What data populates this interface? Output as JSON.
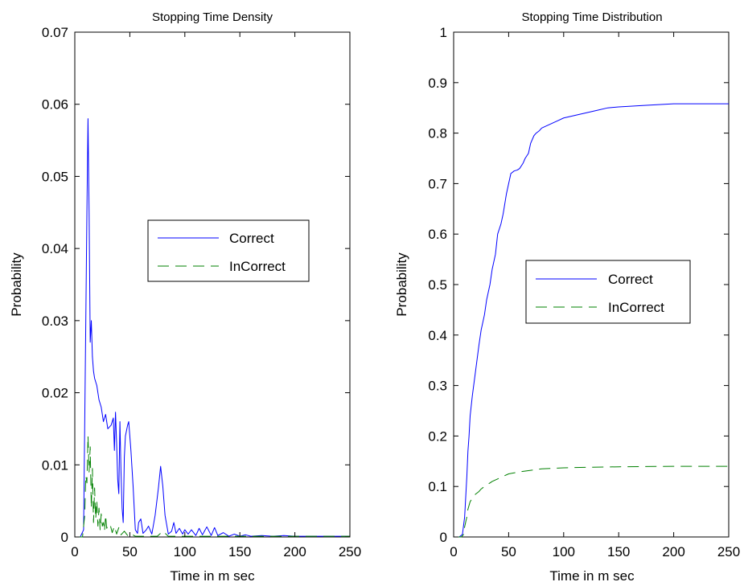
{
  "chart_data": [
    {
      "type": "line",
      "title": "Stopping Time Density",
      "xlabel": "Time in m sec",
      "ylabel": "Probability",
      "xlim": [
        0,
        250
      ],
      "ylim": [
        0,
        0.07
      ],
      "xticks": [
        0,
        50,
        100,
        150,
        200,
        250
      ],
      "xtick_labels": [
        "0",
        "50",
        "100",
        "150",
        "200",
        "250"
      ],
      "yticks": [
        0,
        0.01,
        0.02,
        0.03,
        0.04,
        0.05,
        0.06,
        0.07
      ],
      "ytick_labels": [
        "0",
        "0.01",
        "0.02",
        "0.03",
        "0.04",
        "0.05",
        "0.06",
        "0.07"
      ],
      "grid": false,
      "legend_position": "center-right",
      "series": [
        {
          "name": "Correct",
          "color": "#0000ff",
          "style": "solid",
          "x": [
            0,
            5,
            8,
            10,
            11,
            12,
            13,
            14,
            15,
            16,
            17,
            18,
            20,
            22,
            24,
            26,
            28,
            30,
            33,
            35,
            36,
            37,
            38,
            39,
            40,
            41,
            42,
            43,
            44,
            45,
            46,
            48,
            49,
            50,
            51,
            53,
            55,
            57,
            58,
            60,
            62,
            65,
            67,
            70,
            73,
            76,
            78,
            80,
            82,
            85,
            88,
            90,
            92,
            95,
            98,
            100,
            103,
            106,
            110,
            113,
            116,
            120,
            124,
            127,
            130,
            135,
            140,
            145,
            150,
            155,
            160,
            170,
            180,
            190,
            200,
            210,
            220,
            230,
            240,
            250
          ],
          "values": [
            0,
            0,
            0.001,
            0.03,
            0.045,
            0.058,
            0.045,
            0.027,
            0.03,
            0.025,
            0.023,
            0.022,
            0.021,
            0.019,
            0.018,
            0.016,
            0.017,
            0.015,
            0.0155,
            0.0165,
            0.012,
            0.0173,
            0.013,
            0.008,
            0.006,
            0.016,
            0.009,
            0.004,
            0.002,
            0.011,
            0.014,
            0.0155,
            0.016,
            0.014,
            0.012,
            0.007,
            0.001,
            0.0005,
            0.002,
            0.0025,
            0.0005,
            0.001,
            0.0015,
            0.0004,
            0.003,
            0.0068,
            0.0098,
            0.007,
            0.003,
            0.0004,
            0.0008,
            0.002,
            0.0005,
            0.0012,
            0.0004,
            0.001,
            0.0004,
            0.001,
            0.0002,
            0.0012,
            0.0003,
            0.0014,
            0.0002,
            0.0013,
            0.0002,
            0.0006,
            0.0001,
            0.0004,
            0.0001,
            0.0003,
            0.0001,
            0.0002,
            0.0001,
            0.0002,
            0.0001,
            0.0001,
            0.0001,
            0.0001,
            0.0001,
            0.0001
          ]
        },
        {
          "name": "InCorrect",
          "color": "#008000",
          "style": "dashed",
          "x": [
            0,
            7,
            9,
            10,
            11,
            12,
            13,
            14,
            15,
            16,
            17,
            18,
            19,
            20,
            21,
            22,
            23,
            24,
            25,
            26,
            27,
            28,
            29,
            30,
            32,
            34,
            36,
            38,
            40,
            42,
            45,
            48,
            50,
            55,
            60,
            65,
            70,
            75,
            80,
            85,
            90,
            100,
            110,
            120,
            150,
            200,
            250
          ],
          "values": [
            0,
            0,
            0.003,
            0.0085,
            0.0075,
            0.014,
            0.009,
            0.0125,
            0.004,
            0.0095,
            0.002,
            0.0068,
            0.0025,
            0.005,
            0.0015,
            0.004,
            0.001,
            0.0032,
            0.0015,
            0.002,
            0.0008,
            0.003,
            0.0012,
            0.0015,
            0.0018,
            0.0006,
            0.0015,
            0.0004,
            0.0013,
            0.0003,
            0.0008,
            0.0002,
            0.0005,
            0.0001,
            0.0001,
            0.0001,
            0.0001,
            0.0001,
            0.0008,
            0.0001,
            0.0001,
            0.0001,
            0.0001,
            0.0001,
            0.0001,
            0.0001,
            0.0001
          ]
        }
      ]
    },
    {
      "type": "line",
      "title": "Stopping Time Distribution",
      "xlabel": "Time in m sec",
      "ylabel": "Probability",
      "xlim": [
        0,
        250
      ],
      "ylim": [
        0,
        1
      ],
      "xticks": [
        0,
        50,
        100,
        150,
        200,
        250
      ],
      "xtick_labels": [
        "0",
        "50",
        "100",
        "150",
        "200",
        "250"
      ],
      "yticks": [
        0,
        0.1,
        0.2,
        0.3,
        0.4,
        0.5,
        0.6,
        0.7,
        0.8,
        0.9,
        1
      ],
      "ytick_labels": [
        "0",
        "0.1",
        "0.2",
        "0.3",
        "0.4",
        "0.5",
        "0.6",
        "0.7",
        "0.8",
        "0.9",
        "1"
      ],
      "grid": false,
      "legend_position": "center-right",
      "series": [
        {
          "name": "Correct",
          "color": "#0000ff",
          "style": "solid",
          "x": [
            0,
            5,
            8,
            10,
            12,
            13,
            14,
            15,
            17,
            20,
            23,
            25,
            28,
            30,
            33,
            35,
            38,
            40,
            43,
            45,
            48,
            50,
            52,
            55,
            58,
            60,
            63,
            65,
            68,
            70,
            73,
            75,
            78,
            80,
            85,
            90,
            95,
            100,
            110,
            120,
            130,
            140,
            150,
            175,
            200,
            250
          ],
          "values": [
            0,
            0,
            0.005,
            0.04,
            0.12,
            0.17,
            0.2,
            0.24,
            0.28,
            0.33,
            0.38,
            0.41,
            0.44,
            0.47,
            0.5,
            0.53,
            0.56,
            0.6,
            0.62,
            0.64,
            0.68,
            0.7,
            0.72,
            0.725,
            0.727,
            0.73,
            0.74,
            0.75,
            0.76,
            0.78,
            0.795,
            0.8,
            0.805,
            0.81,
            0.815,
            0.82,
            0.825,
            0.83,
            0.835,
            0.84,
            0.845,
            0.85,
            0.852,
            0.855,
            0.858,
            0.858
          ]
        },
        {
          "name": "InCorrect",
          "color": "#008000",
          "style": "dashed",
          "x": [
            0,
            7,
            9,
            10,
            12,
            13,
            15,
            18,
            20,
            23,
            25,
            28,
            30,
            33,
            35,
            38,
            40,
            45,
            50,
            60,
            70,
            80,
            90,
            100,
            120,
            150,
            200,
            250
          ],
          "values": [
            0,
            0,
            0.005,
            0.02,
            0.04,
            0.055,
            0.07,
            0.08,
            0.085,
            0.09,
            0.095,
            0.1,
            0.103,
            0.107,
            0.11,
            0.113,
            0.115,
            0.12,
            0.125,
            0.129,
            0.132,
            0.135,
            0.136,
            0.137,
            0.138,
            0.139,
            0.14,
            0.14
          ]
        }
      ]
    }
  ]
}
